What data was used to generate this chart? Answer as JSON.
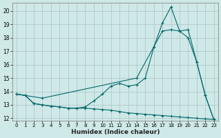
{
  "xlabel": "Humidex (Indice chaleur)",
  "xlim": [
    -0.5,
    23.5
  ],
  "ylim": [
    11.8,
    20.6
  ],
  "yticks": [
    12,
    13,
    14,
    15,
    16,
    17,
    18,
    19,
    20
  ],
  "xticks": [
    0,
    1,
    2,
    3,
    4,
    5,
    6,
    7,
    8,
    9,
    10,
    11,
    12,
    13,
    14,
    15,
    16,
    17,
    18,
    19,
    20,
    21,
    22,
    23
  ],
  "bg_color": "#cfe8e8",
  "line_color": "#006868",
  "grid_color": "#b0c8c8",
  "line1_x": [
    0,
    1,
    2,
    3,
    4,
    5,
    6,
    7,
    8,
    9,
    10,
    11,
    12,
    13,
    14,
    15,
    16,
    17,
    18,
    19,
    20,
    21,
    22,
    23
  ],
  "line1_y": [
    13.8,
    13.7,
    13.1,
    13.0,
    12.9,
    12.85,
    12.75,
    12.75,
    12.75,
    12.7,
    12.65,
    12.6,
    12.5,
    12.4,
    12.35,
    12.3,
    12.25,
    12.2,
    12.15,
    12.1,
    12.05,
    12.0,
    11.95,
    11.9
  ],
  "line2_x": [
    0,
    1,
    2,
    3,
    4,
    5,
    6,
    7,
    8,
    9,
    10,
    11,
    12,
    13,
    14,
    15,
    16,
    17,
    18,
    19,
    20,
    21,
    22,
    23
  ],
  "line2_y": [
    13.8,
    13.7,
    13.1,
    13.0,
    12.9,
    12.85,
    12.75,
    12.75,
    12.85,
    13.3,
    13.8,
    14.4,
    14.6,
    14.4,
    14.5,
    15.0,
    17.3,
    19.1,
    20.3,
    18.5,
    18.6,
    16.2,
    13.7,
    11.9
  ],
  "line3_x": [
    0,
    3,
    14,
    17,
    18,
    19,
    20,
    21,
    22,
    23
  ],
  "line3_y": [
    13.8,
    13.5,
    15.0,
    18.5,
    18.6,
    18.5,
    18.0,
    16.2,
    13.7,
    11.9
  ]
}
